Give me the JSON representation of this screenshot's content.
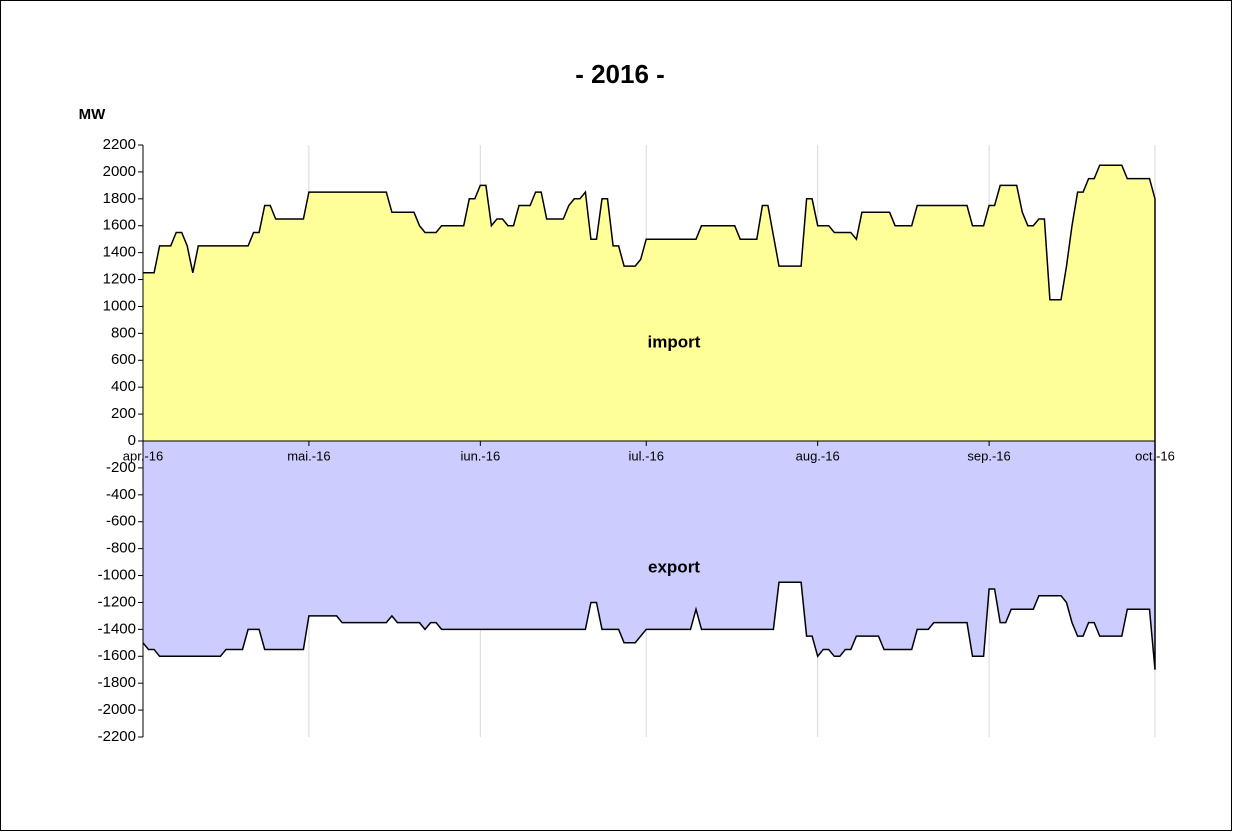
{
  "chart_data": {
    "type": "area",
    "title": "- 2016 -",
    "y_label": "MW",
    "xlim": [
      0,
      183
    ],
    "xticks": [
      {
        "value": 0,
        "label": "apr.-16"
      },
      {
        "value": 30,
        "label": "mai.-16"
      },
      {
        "value": 61,
        "label": "iun.-16"
      },
      {
        "value": 91,
        "label": "iul.-16"
      },
      {
        "value": 122,
        "label": "aug.-16"
      },
      {
        "value": 153,
        "label": "sep.-16"
      },
      {
        "value": 183,
        "label": "oct.-16"
      }
    ],
    "ylim": [
      -2200,
      2200
    ],
    "yticks": [
      -2200,
      -2000,
      -1800,
      -1600,
      -1400,
      -1200,
      -1000,
      -800,
      -600,
      -400,
      -200,
      0,
      200,
      400,
      600,
      800,
      1000,
      1200,
      1400,
      1600,
      1800,
      2000,
      2200
    ],
    "grid": "x",
    "series": [
      {
        "name": "import",
        "color": "#ffff99",
        "x": [
          0,
          2,
          3,
          5,
          6,
          7,
          8,
          9,
          10,
          19,
          20,
          21,
          22,
          23,
          24,
          29,
          30,
          44,
          45,
          49,
          50,
          51,
          53,
          54,
          58,
          59,
          60,
          61,
          62,
          63,
          64,
          65,
          66,
          67,
          68,
          70,
          71,
          72,
          73,
          76,
          77,
          78,
          79,
          80,
          81,
          82,
          83,
          84,
          85,
          86,
          87,
          89,
          90,
          91,
          100,
          101,
          107,
          108,
          111,
          112,
          113,
          115,
          119,
          120,
          121,
          122,
          124,
          125,
          128,
          129,
          130,
          135,
          136,
          139,
          140,
          149,
          150,
          152,
          153,
          154,
          155,
          158,
          159,
          160,
          161,
          162,
          163,
          164,
          166,
          167,
          168,
          169,
          170,
          171,
          172,
          173,
          177,
          178,
          182,
          183
        ],
        "values": [
          1250,
          1250,
          1450,
          1450,
          1550,
          1550,
          1450,
          1250,
          1450,
          1450,
          1550,
          1550,
          1750,
          1750,
          1650,
          1650,
          1850,
          1850,
          1700,
          1700,
          1600,
          1550,
          1550,
          1600,
          1600,
          1800,
          1800,
          1900,
          1900,
          1600,
          1650,
          1650,
          1600,
          1600,
          1750,
          1750,
          1850,
          1850,
          1650,
          1650,
          1750,
          1800,
          1800,
          1850,
          1500,
          1500,
          1800,
          1800,
          1450,
          1450,
          1300,
          1300,
          1350,
          1500,
          1500,
          1600,
          1600,
          1500,
          1500,
          1750,
          1750,
          1300,
          1300,
          1800,
          1800,
          1600,
          1600,
          1550,
          1550,
          1500,
          1700,
          1700,
          1600,
          1600,
          1750,
          1750,
          1600,
          1600,
          1750,
          1750,
          1900,
          1900,
          1700,
          1600,
          1600,
          1650,
          1650,
          1050,
          1050,
          1300,
          1600,
          1850,
          1850,
          1950,
          1950,
          2050,
          2050,
          1950,
          1950,
          1800
        ]
      },
      {
        "name": "export",
        "color": "#ccccff",
        "x": [
          0,
          1,
          2,
          3,
          14,
          15,
          18,
          19,
          21,
          22,
          29,
          30,
          35,
          36,
          44,
          45,
          46,
          50,
          51,
          52,
          53,
          54,
          80,
          81,
          82,
          83,
          86,
          87,
          89,
          91,
          99,
          100,
          101,
          114,
          115,
          119,
          120,
          121,
          122,
          123,
          124,
          125,
          126,
          127,
          128,
          129,
          133,
          134,
          139,
          140,
          142,
          143,
          149,
          150,
          152,
          153,
          154,
          155,
          156,
          157,
          161,
          162,
          166,
          167,
          168,
          169,
          170,
          171,
          172,
          173,
          177,
          178,
          182,
          183
        ],
        "values": [
          -1500,
          -1550,
          -1550,
          -1600,
          -1600,
          -1550,
          -1550,
          -1400,
          -1400,
          -1550,
          -1550,
          -1300,
          -1300,
          -1350,
          -1350,
          -1300,
          -1350,
          -1350,
          -1400,
          -1350,
          -1350,
          -1400,
          -1400,
          -1200,
          -1200,
          -1400,
          -1400,
          -1500,
          -1500,
          -1400,
          -1400,
          -1250,
          -1400,
          -1400,
          -1050,
          -1050,
          -1450,
          -1450,
          -1600,
          -1550,
          -1550,
          -1600,
          -1600,
          -1550,
          -1550,
          -1450,
          -1450,
          -1550,
          -1550,
          -1400,
          -1400,
          -1350,
          -1350,
          -1600,
          -1600,
          -1100,
          -1100,
          -1350,
          -1350,
          -1250,
          -1250,
          -1150,
          -1150,
          -1200,
          -1350,
          -1450,
          -1450,
          -1350,
          -1350,
          -1450,
          -1450,
          -1250,
          -1250,
          -1700
        ]
      }
    ]
  }
}
